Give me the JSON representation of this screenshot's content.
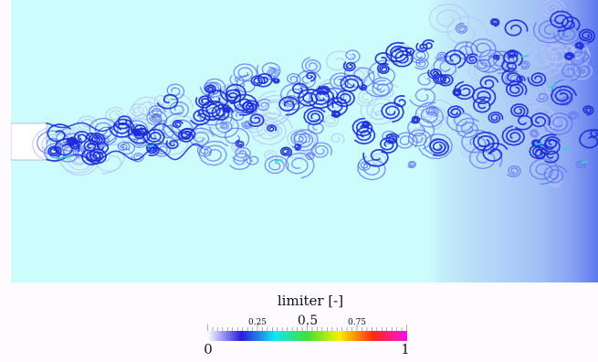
{
  "colors": {
    "field_background": "#cdfcfd",
    "inlet_blank": "#ffffff",
    "outlet_gradient_end": "#5f78ee",
    "vortex_dark": "#1b2ad8",
    "vortex_mid": "#5a6cf2",
    "vortex_light": "#b8c6f6",
    "hot_spot": "#27d6d0"
  },
  "colorbar": {
    "title": "limiter [-]",
    "min_label": "0",
    "max_label": "1",
    "tick_025": "0.25",
    "tick_05": "0.5",
    "tick_075": "0.75",
    "gradient_stops": [
      "#ffffff",
      "#2a1ce0",
      "#10e8f0",
      "#3ee03a",
      "#f6f000",
      "#ff2a10",
      "#ff10e8"
    ]
  }
}
